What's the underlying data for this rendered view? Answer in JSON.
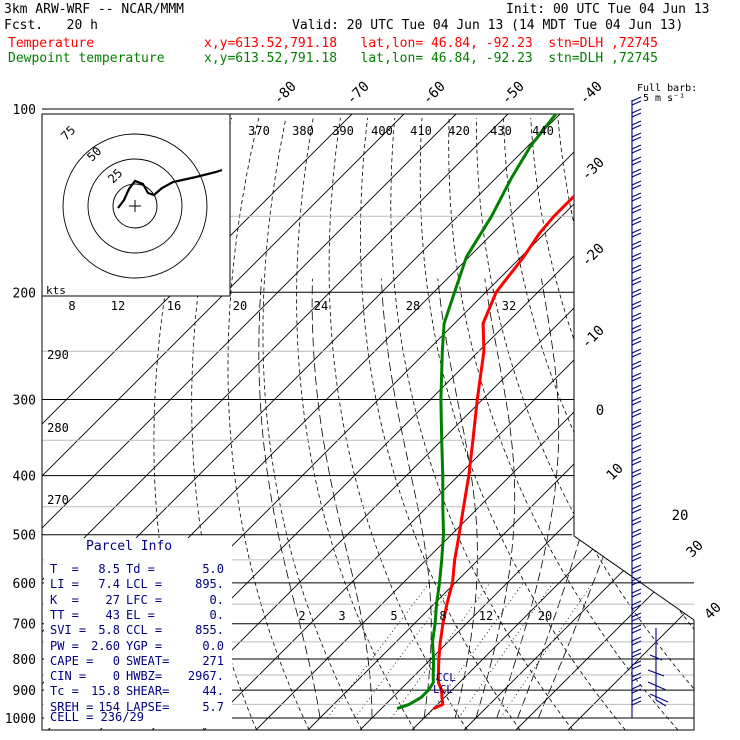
{
  "header": {
    "model": "3km ARW-WRF -- NCAR/MMM",
    "init": "Init: 00 UTC Tue 04 Jun 13",
    "fcst": "Fcst.   20 h",
    "valid": "Valid: 20 UTC Tue 04 Jun 13 (14 MDT Tue 04 Jun 13)",
    "temp_label": "Temperature",
    "temp_loc": "x,y=613.52,791.18   lat,lon= 46.84, -92.23  stn=DLH ,72745",
    "dew_label": "Dewpoint temperature",
    "dew_loc": "x,y=613.52,791.18   lat,lon= 46.84, -92.23  stn=DLH ,72745"
  },
  "barb_legend": {
    "line1": "Full barb:",
    "line2": "5 m s⁻¹"
  },
  "colors": {
    "temperature": "#ff0000",
    "dewpoint": "#008000",
    "barbs": "#000080",
    "isotherm": "#000000",
    "adiabat": "#000000"
  },
  "chart_data": {
    "type": "line",
    "title": "",
    "y_axis": {
      "scale": "log-pressure",
      "unit": "hPa",
      "range": [
        1000,
        100
      ],
      "ticks": [
        100,
        200,
        300,
        400,
        500,
        600,
        700,
        800,
        900,
        1000
      ]
    },
    "isotherm_labels": [
      "-80",
      "-70",
      "-60",
      "-50",
      "-40",
      "-30",
      "-20",
      "-10",
      "0",
      "10",
      "20",
      "30",
      "40"
    ],
    "mixing_ratio_labels": [
      "2",
      "3",
      "5",
      "8",
      "12",
      "20"
    ],
    "theta_labels": [
      "290",
      "280",
      "270"
    ],
    "thetae_labels": [
      "370",
      "380",
      "390",
      "400",
      "410",
      "420",
      "430",
      "440"
    ],
    "precip_water_labels": [
      "8",
      "12",
      "16",
      "20",
      "24",
      "28",
      "32"
    ],
    "series": [
      {
        "name": "Temperature",
        "unit": "degC",
        "points": [
          [
            965,
            10.0
          ],
          [
            950,
            11.0
          ],
          [
            925,
            9.5
          ],
          [
            900,
            8.0
          ],
          [
            875,
            6.0
          ],
          [
            850,
            4.5
          ],
          [
            800,
            1.5
          ],
          [
            750,
            -1.5
          ],
          [
            700,
            -4.5
          ],
          [
            650,
            -7.5
          ],
          [
            600,
            -10.5
          ],
          [
            550,
            -14.5
          ],
          [
            500,
            -18.5
          ],
          [
            450,
            -23.0
          ],
          [
            400,
            -28.0
          ],
          [
            350,
            -34.0
          ],
          [
            300,
            -41.0
          ],
          [
            250,
            -49.0
          ],
          [
            225,
            -54.5
          ],
          [
            200,
            -58.0
          ],
          [
            175,
            -59.5
          ],
          [
            160,
            -61.0
          ],
          [
            150,
            -61.5
          ],
          [
            135,
            -61.5
          ],
          [
            120,
            -62.0
          ],
          [
            100,
            -64.0
          ]
        ]
      },
      {
        "name": "Dewpoint temperature",
        "unit": "degC",
        "points": [
          [
            965,
            3.0
          ],
          [
            950,
            4.5
          ],
          [
            925,
            5.5
          ],
          [
            900,
            5.5
          ],
          [
            875,
            5.0
          ],
          [
            850,
            3.5
          ],
          [
            800,
            0.5
          ],
          [
            750,
            -3.0
          ],
          [
            700,
            -6.0
          ],
          [
            650,
            -9.5
          ],
          [
            600,
            -13.0
          ],
          [
            550,
            -17.0
          ],
          [
            500,
            -21.5
          ],
          [
            450,
            -27.0
          ],
          [
            400,
            -33.0
          ],
          [
            350,
            -40.0
          ],
          [
            300,
            -48.0
          ],
          [
            250,
            -57.0
          ],
          [
            225,
            -62.0
          ],
          [
            200,
            -66.0
          ],
          [
            175,
            -70.5
          ],
          [
            150,
            -73.5
          ],
          [
            130,
            -77.0
          ],
          [
            115,
            -79.5
          ],
          [
            100,
            -81.0
          ]
        ]
      }
    ]
  },
  "hodograph": {
    "unit_label": "kts",
    "ring_labels": [
      "75",
      "50",
      "25"
    ]
  },
  "parcel_info": {
    "title": "Parcel Info",
    "rows": [
      [
        "T  =",
        "8.5",
        "Td =",
        "5.0"
      ],
      [
        "LI =",
        "7.4",
        "LCL =",
        "895."
      ],
      [
        "K  =",
        "27",
        "LFC =",
        "0."
      ],
      [
        "TT =",
        "43",
        "EL =",
        "0."
      ],
      [
        "SVI =",
        "5.8",
        "CCL =",
        "855."
      ],
      [
        "PW =",
        "2.60",
        "YGP =",
        "0.0"
      ],
      [
        "CAPE =",
        "0",
        "SWEAT=",
        "271"
      ],
      [
        "CIN =",
        "0",
        "HWBZ=",
        "2967."
      ],
      [
        "Tc =",
        "15.8",
        "SHEAR=",
        "44."
      ],
      [
        "SREH =",
        "154",
        "LAPSE=",
        "5.7"
      ]
    ],
    "cell": "CELL = 236/29"
  },
  "level_markers": {
    "ccl": "CCL",
    "lcl": "LCL"
  }
}
